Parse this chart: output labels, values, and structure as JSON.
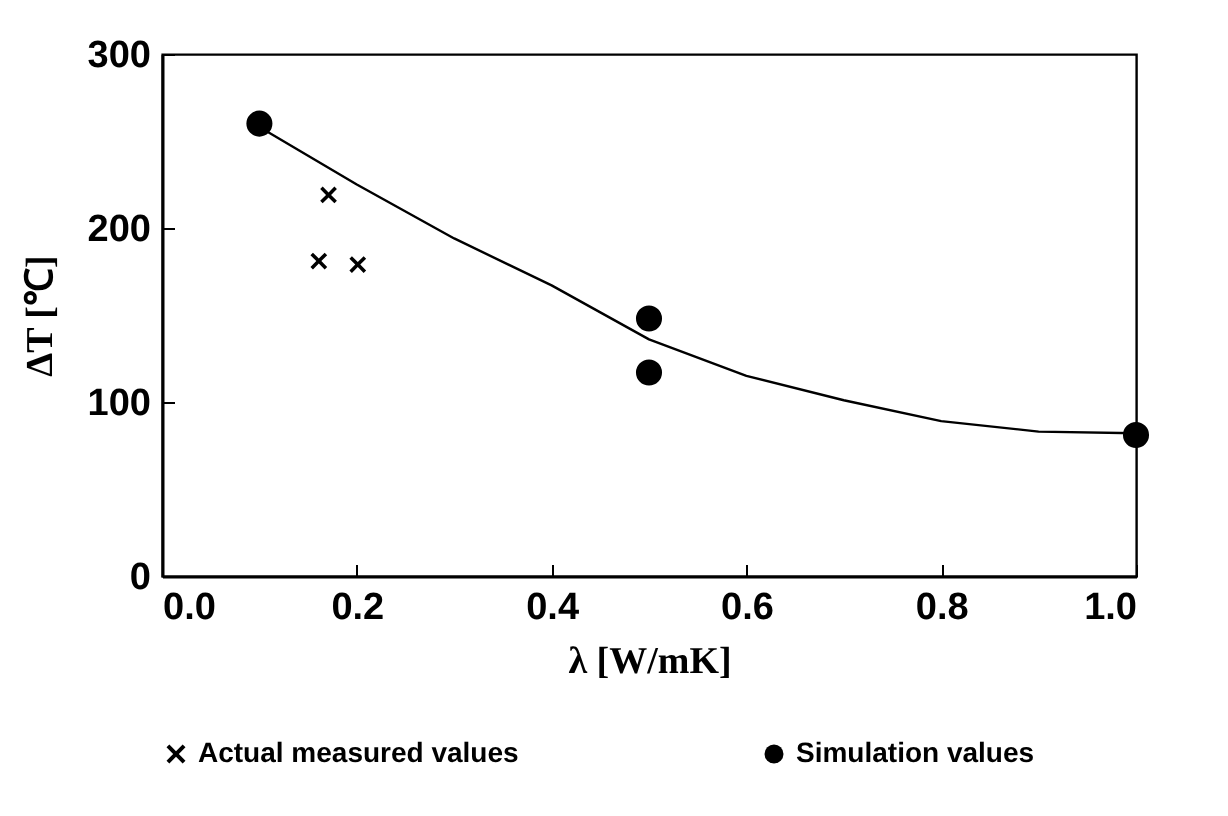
{
  "chart_data": {
    "type": "scatter",
    "xlabel": "λ [W/mK]",
    "ylabel": "ΔT [℃]",
    "xlim": [
      0,
      1
    ],
    "ylim": [
      0,
      300
    ],
    "xticks": [
      {
        "value": 0,
        "label": "0.0"
      },
      {
        "value": 0.2,
        "label": "0.2"
      },
      {
        "value": 0.4,
        "label": "0.4"
      },
      {
        "value": 0.6,
        "label": "0.6"
      },
      {
        "value": 0.8,
        "label": "0.8"
      },
      {
        "value": 1,
        "label": "1.0"
      }
    ],
    "yticks": [
      0,
      100,
      200,
      300
    ],
    "grid": false,
    "legend": "bottom",
    "series": [
      {
        "name": "Actual measured values",
        "color": "#000000",
        "marker": "cross",
        "x": [
          0.171,
          0.161,
          0.201
        ],
        "values": [
          219,
          181,
          179
        ]
      },
      {
        "name": "Simulation values",
        "color": "#000000",
        "marker": "circle",
        "x": [
          0.1,
          0.5,
          0.5,
          1.0
        ],
        "values": [
          260,
          148,
          117,
          81
        ]
      },
      {
        "type": "line",
        "color": "#000000",
        "marker": "none",
        "x": [
          0.1,
          0.2,
          0.3,
          0.4,
          0.5,
          0.6,
          0.7,
          0.8,
          0.9,
          1.0
        ],
        "values": [
          258,
          225,
          194,
          167,
          136,
          115,
          101,
          89,
          83,
          82
        ]
      }
    ]
  }
}
